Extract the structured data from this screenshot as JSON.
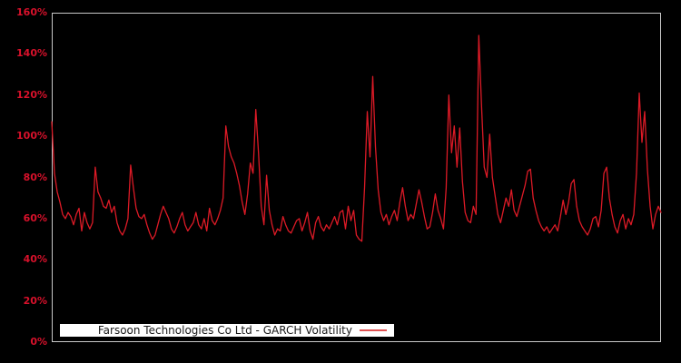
{
  "colors": {
    "background": "#000000",
    "frame": "#c8c8c8",
    "tick_label": "#d8112b",
    "series_line": "#dc1a26",
    "legend_background": "#ffffff",
    "legend_text": "#1a1a1a",
    "legend_line_sample": "#e05252"
  },
  "legend": {
    "label": "Farsoon Technologies Co Ltd - GARCH Volatility"
  },
  "chart_data": {
    "type": "line",
    "title": "Farsoon Technologies Co Ltd - GARCH Volatility",
    "xlabel": "",
    "ylabel": "",
    "grid": false,
    "legend_position": "bottom-left",
    "ylim": [
      0,
      160
    ],
    "y_unit": "%",
    "y_tick_labels": [
      "0%",
      "20%",
      "40%",
      "60%",
      "80%",
      "100%",
      "120%",
      "140%",
      "160%"
    ],
    "x_tick_labels": [],
    "series": [
      {
        "name": "Farsoon Technologies Co Ltd - GARCH Volatility",
        "color": "#dc1a26",
        "values_percent": [
          107,
          82,
          73,
          68,
          62,
          60,
          63,
          61,
          57,
          62,
          65,
          54,
          63,
          58,
          55,
          58,
          85,
          73,
          70,
          66,
          65,
          69,
          63,
          66,
          58,
          54,
          52,
          55,
          60,
          86,
          75,
          65,
          61,
          60,
          62,
          57,
          53,
          50,
          52,
          57,
          62,
          66,
          63,
          60,
          55,
          53,
          56,
          60,
          63,
          57,
          54,
          56,
          58,
          63,
          57,
          55,
          60,
          54,
          65,
          59,
          57,
          60,
          64,
          70,
          105,
          95,
          90,
          87,
          82,
          76,
          68,
          62,
          72,
          87,
          82,
          113,
          92,
          66,
          57,
          81,
          64,
          57,
          52,
          55,
          54,
          61,
          57,
          54,
          53,
          56,
          59,
          60,
          54,
          58,
          63,
          54,
          50,
          58,
          61,
          56,
          54,
          57,
          55,
          58,
          61,
          57,
          63,
          64,
          55,
          66,
          59,
          64,
          52,
          50,
          49,
          75,
          112,
          90,
          129,
          95,
          74,
          63,
          59,
          62,
          57,
          61,
          64,
          59,
          68,
          75,
          66,
          59,
          62,
          60,
          67,
          74,
          68,
          61,
          55,
          56,
          63,
          72,
          64,
          60,
          55,
          75,
          120,
          92,
          105,
          85,
          104,
          78,
          63,
          59,
          58,
          66,
          62,
          149,
          115,
          85,
          80,
          101,
          80,
          71,
          62,
          58,
          64,
          70,
          66,
          74,
          64,
          61,
          66,
          71,
          76,
          83,
          84,
          70,
          64,
          59,
          56,
          54,
          56,
          53,
          55,
          57,
          54,
          61,
          69,
          62,
          68,
          77,
          79,
          66,
          59,
          56,
          54,
          52,
          55,
          60,
          61,
          56,
          64,
          82,
          85,
          70,
          62,
          56,
          53,
          59,
          62,
          55,
          60,
          57,
          62,
          82,
          121,
          97,
          112,
          84,
          66,
          55,
          62,
          66,
          63
        ]
      }
    ]
  }
}
